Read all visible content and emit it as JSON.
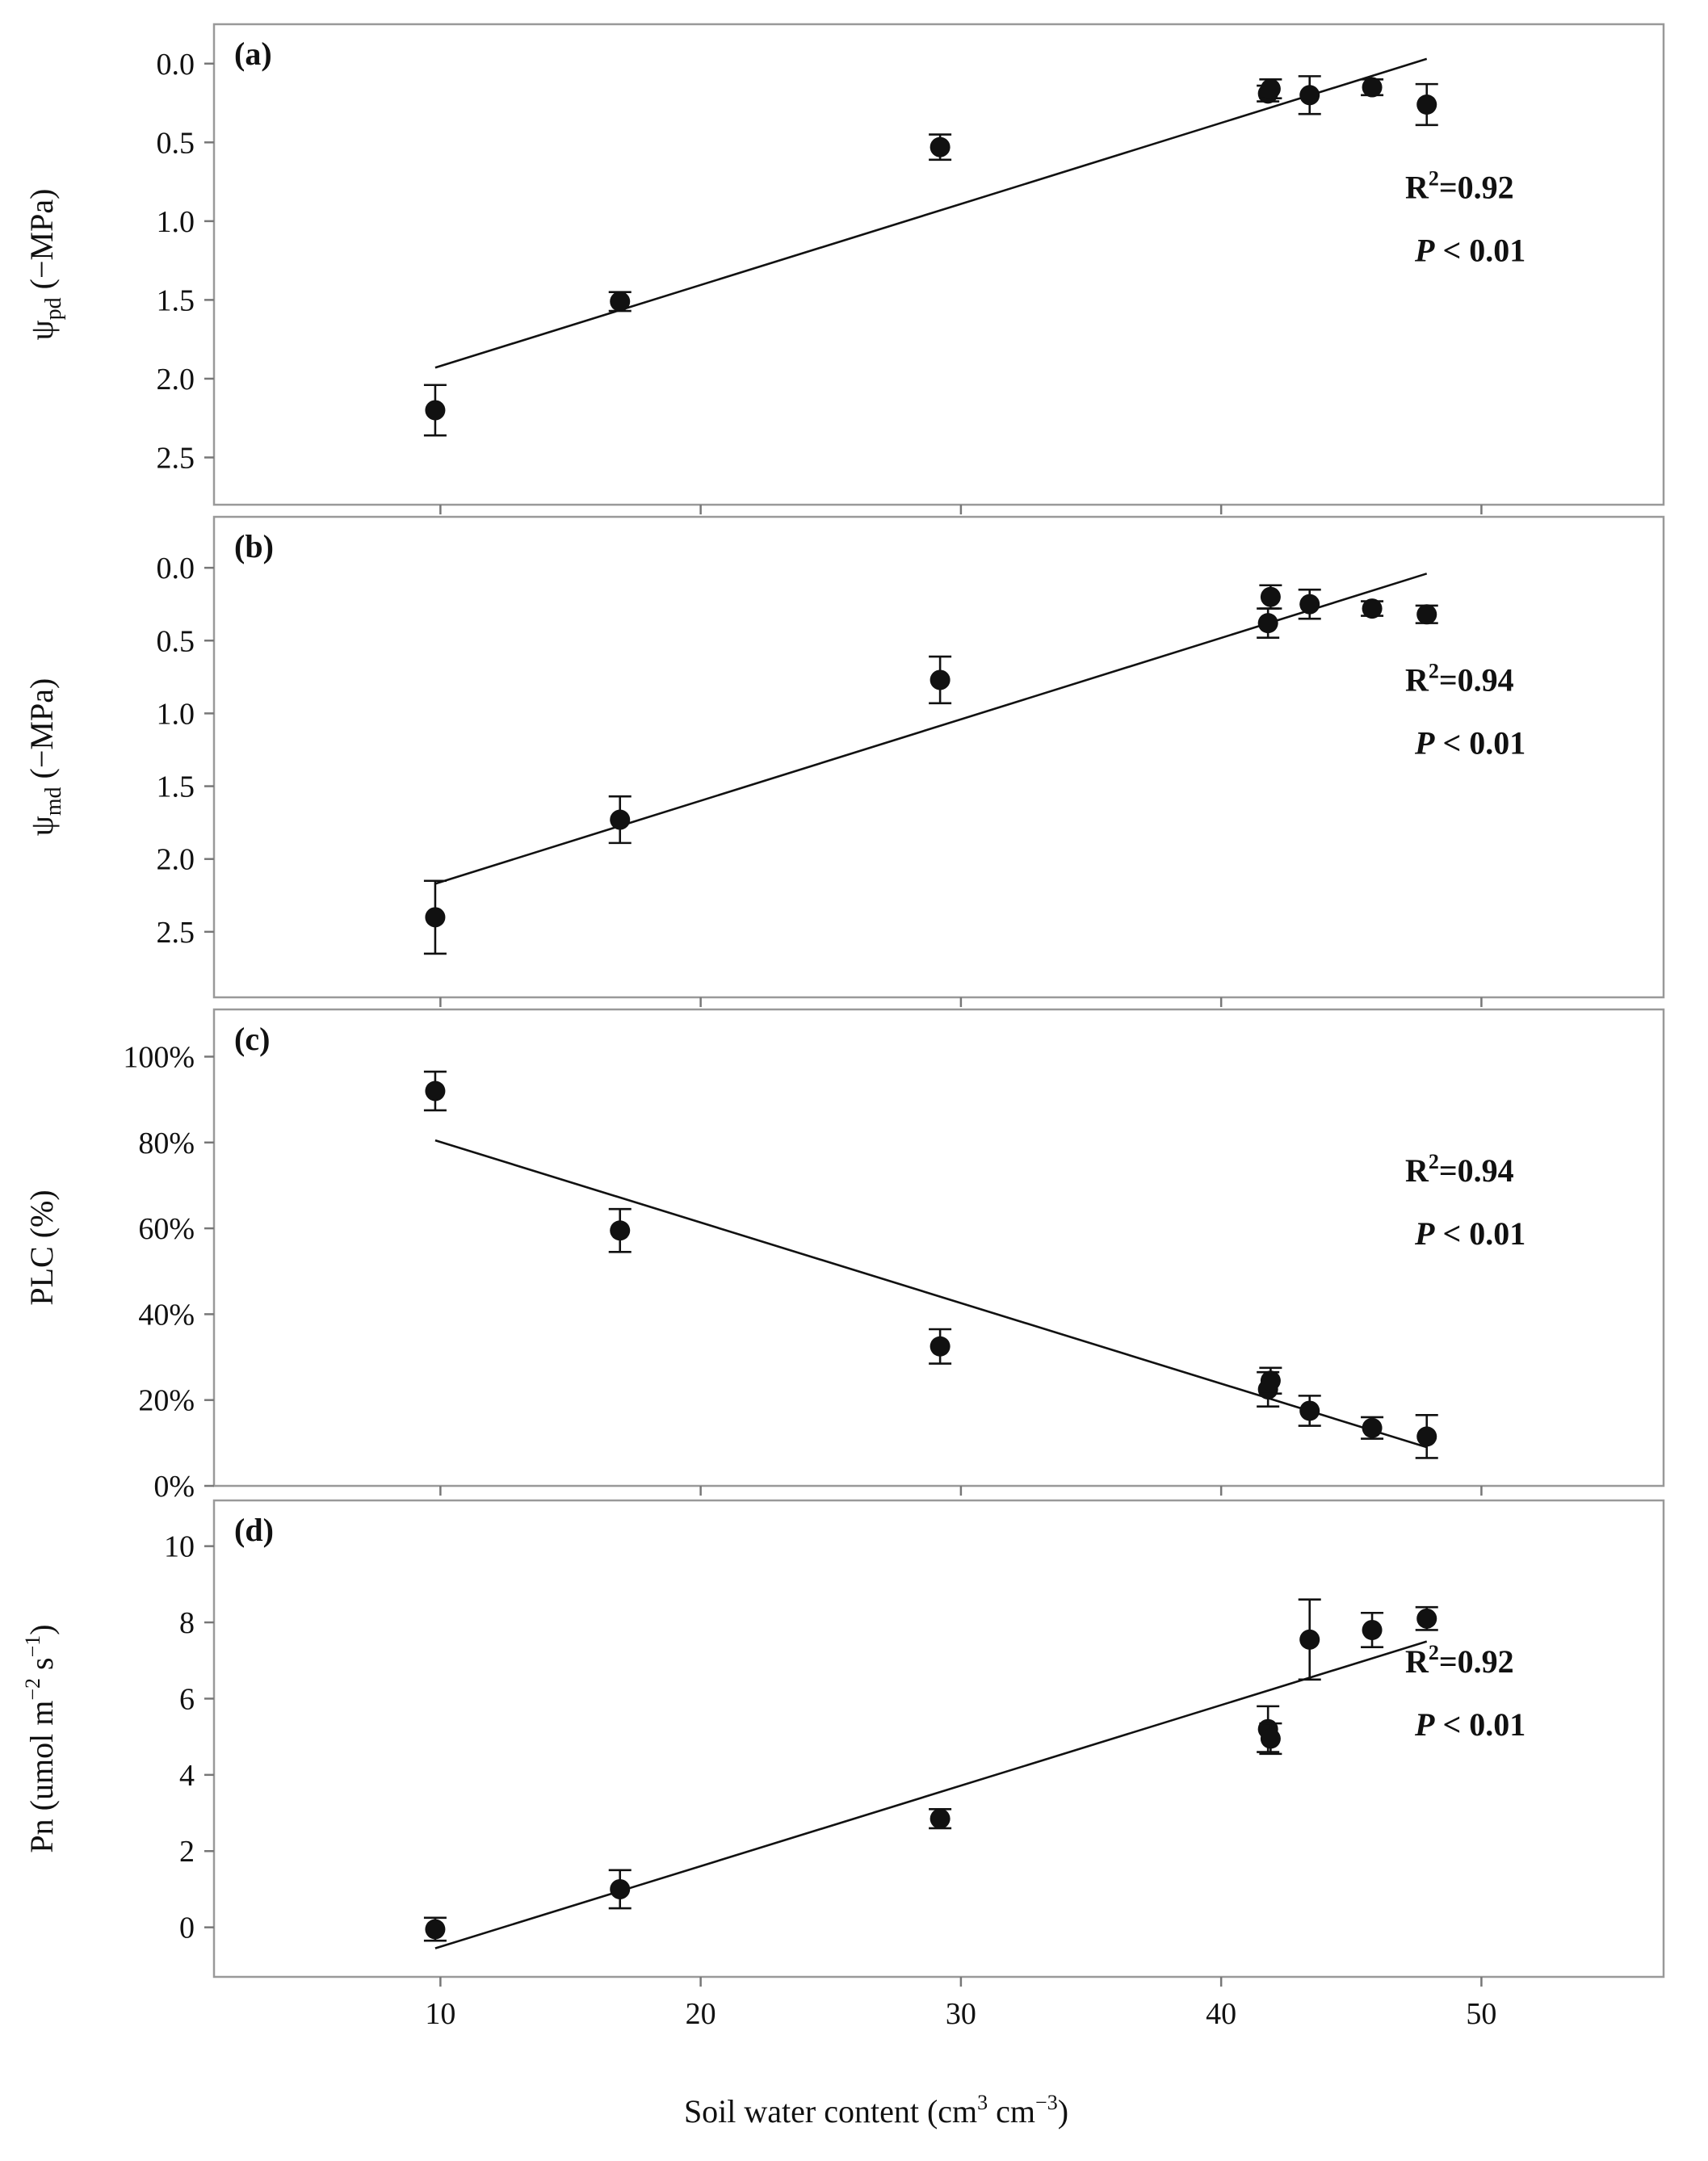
{
  "figure": {
    "xlabel_main": "Soil water content (cm",
    "xlabel_sup1": "3",
    "xlabel_mid": " cm",
    "xlabel_sup2": "−3",
    "xlabel_end": ")"
  },
  "chart_data": [
    {
      "type": "scatter",
      "panel": "(a)",
      "ylabel_base": "ψ",
      "ylabel_sub": "pd",
      "ylabel_unit": " (−MPa)",
      "x_ticks": [
        10,
        20,
        30,
        40,
        50
      ],
      "x_tick_labels": [
        "10",
        "20",
        "30",
        "40",
        "50"
      ],
      "xlim": [
        1.3,
        57
      ],
      "y_ticks": [
        0.0,
        0.5,
        1.0,
        1.5,
        2.0,
        2.5
      ],
      "y_tick_labels": [
        "0.0",
        "0.5",
        "1.0",
        "1.5",
        "2.0",
        "2.5"
      ],
      "ylim": [
        -0.25,
        2.8
      ],
      "y_inverted": true,
      "points": [
        {
          "x": 9.8,
          "y": 2.2,
          "err": 0.16
        },
        {
          "x": 16.9,
          "y": 1.51,
          "err": 0.06
        },
        {
          "x": 29.2,
          "y": 0.53,
          "err": 0.08
        },
        {
          "x": 41.8,
          "y": 0.19,
          "err": 0.05
        },
        {
          "x": 41.9,
          "y": 0.16,
          "err": 0.06
        },
        {
          "x": 43.4,
          "y": 0.2,
          "err": 0.12
        },
        {
          "x": 45.8,
          "y": 0.15,
          "err": 0.05
        },
        {
          "x": 47.9,
          "y": 0.26,
          "err": 0.13
        }
      ],
      "fit": {
        "x": [
          9.8,
          47.9
        ],
        "y": [
          1.93,
          -0.03
        ]
      },
      "r2_label": "R",
      "r2_sup": "2",
      "r2_value": "=0.92",
      "p_symbol": "P",
      "p_text": " < 0.01"
    },
    {
      "type": "scatter",
      "panel": "(b)",
      "ylabel_base": "ψ",
      "ylabel_sub": "md",
      "ylabel_unit": " (−MPa)",
      "x_ticks": [
        10,
        20,
        30,
        40,
        50
      ],
      "x_tick_labels": [
        "10",
        "20",
        "30",
        "40",
        "50"
      ],
      "xlim": [
        1.3,
        57
      ],
      "y_ticks": [
        0.0,
        0.5,
        1.0,
        1.5,
        2.0,
        2.5
      ],
      "y_tick_labels": [
        "0.0",
        "0.5",
        "1.0",
        "1.5",
        "2.0",
        "2.5"
      ],
      "ylim": [
        -0.35,
        2.95
      ],
      "y_inverted": true,
      "points": [
        {
          "x": 9.8,
          "y": 2.4,
          "err": 0.25
        },
        {
          "x": 16.9,
          "y": 1.73,
          "err": 0.16
        },
        {
          "x": 29.2,
          "y": 0.77,
          "err": 0.16
        },
        {
          "x": 41.8,
          "y": 0.38,
          "err": 0.1
        },
        {
          "x": 41.9,
          "y": 0.2,
          "err": 0.08
        },
        {
          "x": 43.4,
          "y": 0.25,
          "err": 0.1
        },
        {
          "x": 45.8,
          "y": 0.28,
          "err": 0.05
        },
        {
          "x": 47.9,
          "y": 0.32,
          "err": 0.06
        }
      ],
      "fit": {
        "x": [
          9.8,
          47.9
        ],
        "y": [
          2.17,
          0.04
        ]
      },
      "r2_label": "R",
      "r2_sup": "2",
      "r2_value": "=0.94",
      "p_symbol": "P",
      "p_text": " < 0.01"
    },
    {
      "type": "scatter",
      "panel": "(c)",
      "ylabel_base": "PLC (%)",
      "ylabel_sub": "",
      "ylabel_unit": "",
      "x_ticks": [
        10,
        20,
        30,
        40,
        50
      ],
      "x_tick_labels": [
        "10",
        "20",
        "30",
        "40",
        "50"
      ],
      "xlim": [
        1.3,
        57
      ],
      "y_ticks": [
        0,
        20,
        40,
        60,
        80,
        100
      ],
      "y_tick_labels": [
        "0%",
        "20%",
        "40%",
        "60%",
        "80%",
        "100%"
      ],
      "ylim": [
        0,
        111
      ],
      "y_inverted": false,
      "points": [
        {
          "x": 9.8,
          "y": 92,
          "err": 4.5
        },
        {
          "x": 16.9,
          "y": 59.5,
          "err": 5
        },
        {
          "x": 29.2,
          "y": 32.5,
          "err": 4
        },
        {
          "x": 41.8,
          "y": 22.5,
          "err": 4
        },
        {
          "x": 41.9,
          "y": 24.5,
          "err": 3
        },
        {
          "x": 43.4,
          "y": 17.5,
          "err": 3.5
        },
        {
          "x": 45.8,
          "y": 13.5,
          "err": 2.5
        },
        {
          "x": 47.9,
          "y": 11.5,
          "err": 5
        }
      ],
      "fit": {
        "x": [
          9.8,
          47.9
        ],
        "y": [
          80.5,
          9
        ]
      },
      "r2_label": "R",
      "r2_sup": "2",
      "r2_value": "=0.94",
      "p_symbol": "P",
      "p_text": " < 0.01"
    },
    {
      "type": "scatter",
      "panel": "(d)",
      "ylabel_base": "Pn  (umol m",
      "ylabel_sub": "",
      "ylabel_unit": "",
      "ylabel_sup1": "−2",
      "ylabel_mid": " s",
      "ylabel_sup2": "−1",
      "ylabel_end": ")",
      "x_ticks": [
        10,
        20,
        30,
        40,
        50
      ],
      "x_tick_labels": [
        "10",
        "20",
        "30",
        "40",
        "50"
      ],
      "xlim": [
        1.3,
        57
      ],
      "y_ticks": [
        0,
        2,
        4,
        6,
        8,
        10
      ],
      "y_tick_labels": [
        "0",
        "2",
        "4",
        "6",
        "8",
        "10"
      ],
      "ylim": [
        -1.3,
        11.2
      ],
      "y_inverted": false,
      "points": [
        {
          "x": 9.8,
          "y": -0.05,
          "err": 0.3
        },
        {
          "x": 16.9,
          "y": 1.0,
          "err": 0.5
        },
        {
          "x": 29.2,
          "y": 2.85,
          "err": 0.25
        },
        {
          "x": 41.8,
          "y": 5.2,
          "err": 0.6
        },
        {
          "x": 41.9,
          "y": 4.95,
          "err": 0.4
        },
        {
          "x": 43.4,
          "y": 7.55,
          "err": 1.05
        },
        {
          "x": 45.8,
          "y": 7.8,
          "err": 0.45
        },
        {
          "x": 47.9,
          "y": 8.1,
          "err": 0.3
        }
      ],
      "fit": {
        "x": [
          9.8,
          47.9
        ],
        "y": [
          -0.55,
          7.5
        ]
      },
      "r2_label": "R",
      "r2_sup": "2",
      "r2_value": "=0.92",
      "p_symbol": "P",
      "p_text": " < 0.01"
    }
  ]
}
